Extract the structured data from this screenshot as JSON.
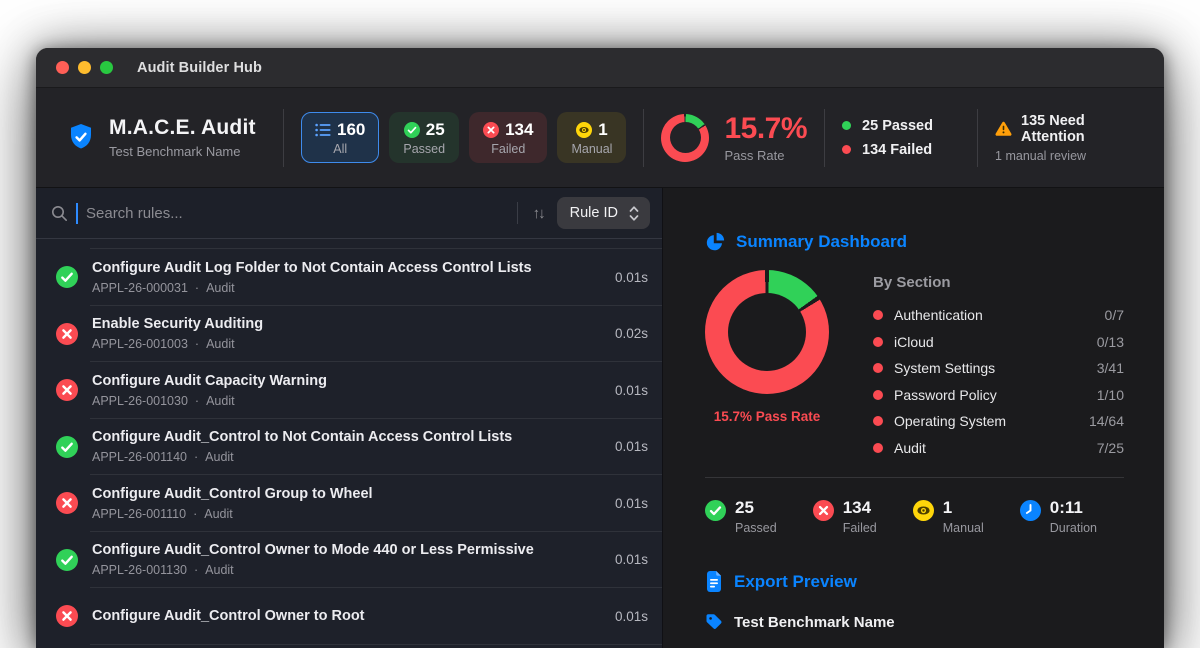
{
  "window": {
    "title": "Audit Builder Hub"
  },
  "header": {
    "app_title": "M.A.C.E. Audit",
    "app_subtitle": "Test Benchmark Name",
    "filters": [
      {
        "count": "160",
        "label": "All"
      },
      {
        "count": "25",
        "label": "Passed"
      },
      {
        "count": "134",
        "label": "Failed"
      },
      {
        "count": "1",
        "label": "Manual"
      }
    ],
    "pass_rate_value": "15.7%",
    "pass_rate_label": "Pass Rate",
    "legend": [
      {
        "label": "25 Passed"
      },
      {
        "label": "134 Failed"
      }
    ],
    "attention_title": "135 Need Attention",
    "attention_subtitle": "1 manual review"
  },
  "toolbar": {
    "search_placeholder": "Search rules...",
    "sort_label": "Rule ID"
  },
  "rules": [
    {
      "status": "pass",
      "title": "Configure Audit Log Folder to Not Contain Access Control Lists",
      "id": "APPL-26-000031",
      "section": "Audit",
      "duration": "0.01s"
    },
    {
      "status": "fail",
      "title": "Enable Security Auditing",
      "id": "APPL-26-001003",
      "section": "Audit",
      "duration": "0.02s"
    },
    {
      "status": "fail",
      "title": "Configure Audit Capacity Warning",
      "id": "APPL-26-001030",
      "section": "Audit",
      "duration": "0.01s"
    },
    {
      "status": "pass",
      "title": "Configure Audit_Control to Not Contain Access Control Lists",
      "id": "APPL-26-001140",
      "section": "Audit",
      "duration": "0.01s"
    },
    {
      "status": "fail",
      "title": "Configure Audit_Control Group to Wheel",
      "id": "APPL-26-001110",
      "section": "Audit",
      "duration": "0.01s"
    },
    {
      "status": "pass",
      "title": "Configure Audit_Control Owner to Mode 440 or Less Permissive",
      "id": "APPL-26-001130",
      "section": "Audit",
      "duration": "0.01s"
    },
    {
      "status": "fail",
      "title": "Configure Audit_Control Owner to Root",
      "id": "",
      "section": "",
      "duration": "0.01s"
    }
  ],
  "summary": {
    "title": "Summary Dashboard",
    "donut_label": "15.7% Pass Rate",
    "by_section_title": "By Section",
    "sections": [
      {
        "name": "Authentication",
        "value": "0/7"
      },
      {
        "name": "iCloud",
        "value": "0/13"
      },
      {
        "name": "System Settings",
        "value": "3/41"
      },
      {
        "name": "Password Policy",
        "value": "1/10"
      },
      {
        "name": "Operating System",
        "value": "14/64"
      },
      {
        "name": "Audit",
        "value": "7/25"
      }
    ],
    "stats": [
      {
        "value": "25",
        "label": "Passed"
      },
      {
        "value": "134",
        "label": "Failed"
      },
      {
        "value": "1",
        "label": "Manual"
      },
      {
        "value": "0:11",
        "label": "Duration"
      }
    ]
  },
  "export_preview": {
    "title": "Export Preview",
    "benchmark_name": "Test Benchmark Name"
  },
  "chart_data": {
    "type": "pie",
    "title": "Pass Rate",
    "slices": [
      {
        "label": "Passed",
        "value": 25,
        "color": "#30d158"
      },
      {
        "label": "Failed",
        "value": 134,
        "color": "#fb4b52"
      }
    ],
    "pass_rate_percent": 15.7,
    "legend_position": "right"
  },
  "colors": {
    "accent_blue": "#0a84ff",
    "pass_green": "#30d158",
    "fail_red": "#fb4b52",
    "manual_yellow": "#ffd60a",
    "warning_orange": "#ff9f0a",
    "header_bg": "#232327",
    "panel_bg": "#1b1b1d"
  }
}
